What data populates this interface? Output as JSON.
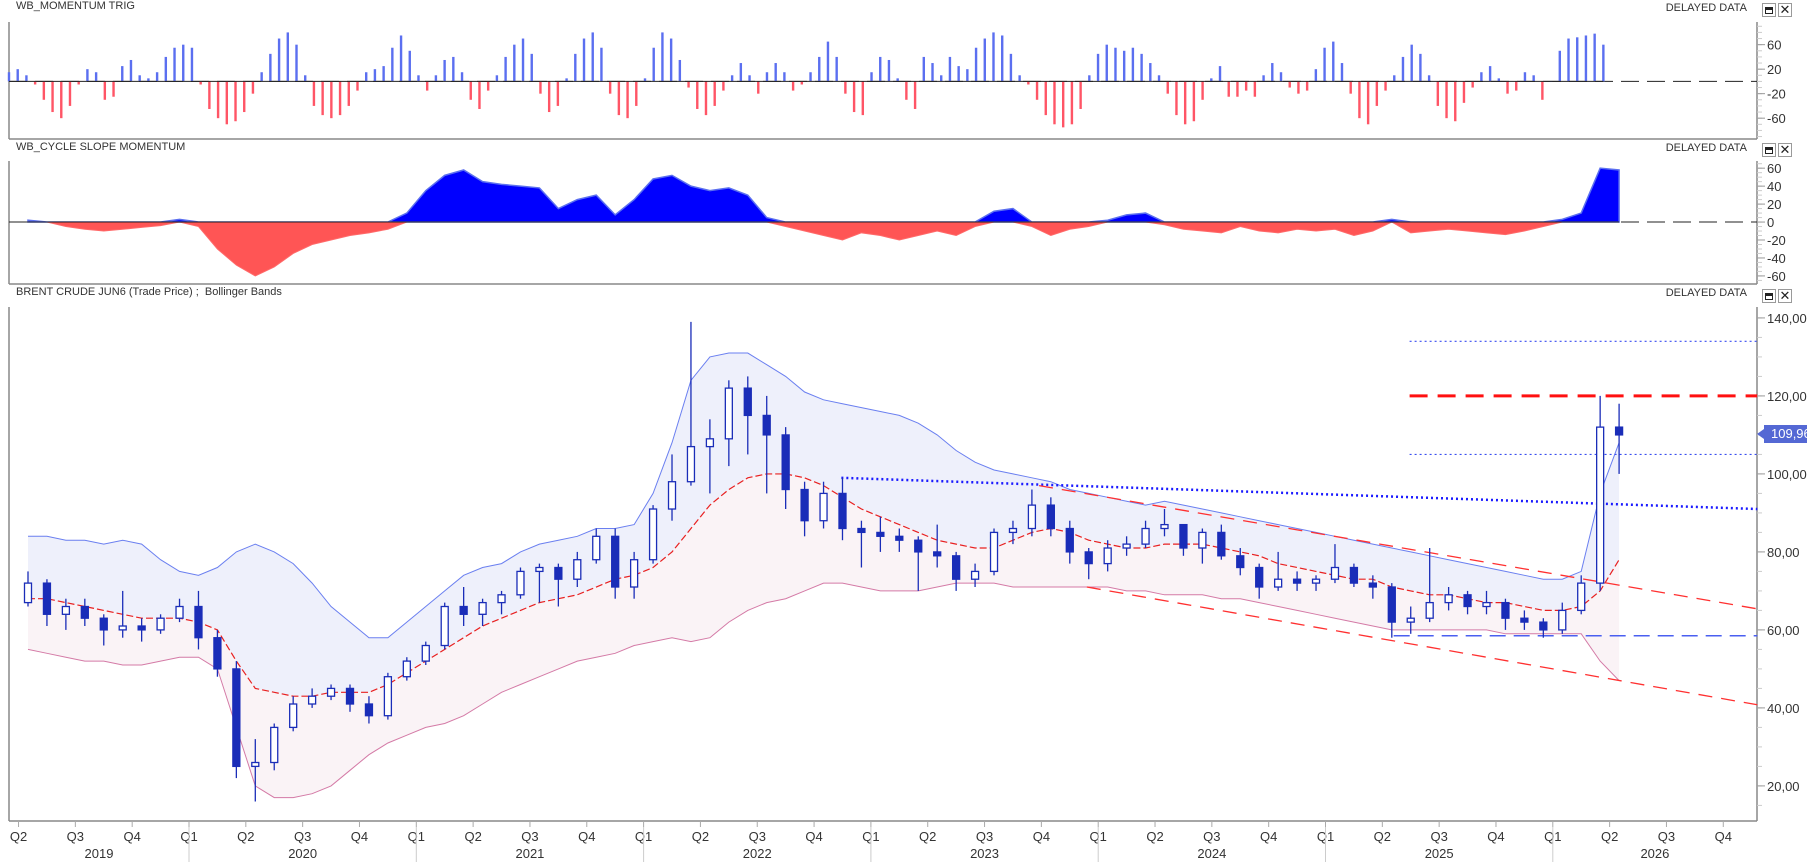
{
  "panels": [
    {
      "title": "WB_MOMENTUM TRIG",
      "status": "DELAYED DATA"
    },
    {
      "title": "WB_CYCLE SLOPE MOMENTUM",
      "status": "DELAYED DATA"
    },
    {
      "title": "BRENT CRUDE JUN6 (Trade Price) ;  Bollinger Bands",
      "status": "DELAYED DATA"
    }
  ],
  "icons": {
    "maximize": "maximize-icon",
    "close": "close-icon"
  },
  "colors": {
    "bull": "#5b6ff0",
    "bear": "#ff5566",
    "area_pos": "#0000ff",
    "area_neg": "#ff5555",
    "candle": "#1a2db8",
    "band_mid": "#e82020",
    "band_upper": "#6a7ff0",
    "band_lower": "#d47aa6",
    "price_tag": "#5468d4"
  },
  "x_axis": {
    "quarters": [
      {
        "year": 2019,
        "q": 2,
        "label": "Q2"
      },
      {
        "year": 2019,
        "q": 3,
        "label": "Q3"
      },
      {
        "year": 2019,
        "q": 4,
        "label": "Q4"
      },
      {
        "year": 2020,
        "q": 1,
        "label": "Q1"
      },
      {
        "year": 2020,
        "q": 2,
        "label": "Q2"
      },
      {
        "year": 2020,
        "q": 3,
        "label": "Q3"
      },
      {
        "year": 2020,
        "q": 4,
        "label": "Q4"
      },
      {
        "year": 2021,
        "q": 1,
        "label": "Q1"
      },
      {
        "year": 2021,
        "q": 2,
        "label": "Q2"
      },
      {
        "year": 2021,
        "q": 3,
        "label": "Q3"
      },
      {
        "year": 2021,
        "q": 4,
        "label": "Q4"
      },
      {
        "year": 2022,
        "q": 1,
        "label": "Q1"
      },
      {
        "year": 2022,
        "q": 2,
        "label": "Q2"
      },
      {
        "year": 2022,
        "q": 3,
        "label": "Q3"
      },
      {
        "year": 2022,
        "q": 4,
        "label": "Q4"
      },
      {
        "year": 2023,
        "q": 1,
        "label": "Q1"
      },
      {
        "year": 2023,
        "q": 2,
        "label": "Q2"
      },
      {
        "year": 2023,
        "q": 3,
        "label": "Q3"
      },
      {
        "year": 2023,
        "q": 4,
        "label": "Q4"
      },
      {
        "year": 2024,
        "q": 1,
        "label": "Q1"
      },
      {
        "year": 2024,
        "q": 2,
        "label": "Q2"
      },
      {
        "year": 2024,
        "q": 3,
        "label": "Q3"
      },
      {
        "year": 2024,
        "q": 4,
        "label": "Q4"
      },
      {
        "year": 2025,
        "q": 1,
        "label": "Q1"
      },
      {
        "year": 2025,
        "q": 2,
        "label": "Q2"
      },
      {
        "year": 2025,
        "q": 3,
        "label": "Q3"
      },
      {
        "year": 2025,
        "q": 4,
        "label": "Q4"
      },
      {
        "year": 2026,
        "q": 1,
        "label": "Q1"
      },
      {
        "year": 2026,
        "q": 2,
        "label": "Q2"
      },
      {
        "year": 2026,
        "q": 3,
        "label": "Q3"
      },
      {
        "year": 2026,
        "q": 4,
        "label": "Q4"
      }
    ],
    "years": [
      "2019",
      "2020",
      "2021",
      "2022",
      "2023",
      "2024",
      "2025",
      "2026"
    ]
  },
  "chart_data": [
    {
      "type": "bar",
      "title": "WB_MOMENTUM TRIG",
      "start": "2019-03-18",
      "step_days": 14,
      "ylim": [
        -94,
        97
      ],
      "yticks": [
        60,
        20,
        -20,
        -60
      ],
      "values": [
        15,
        20,
        10,
        -5,
        -30,
        -50,
        -60,
        -40,
        -5,
        20,
        15,
        -30,
        -25,
        25,
        35,
        10,
        5,
        15,
        40,
        55,
        60,
        55,
        -5,
        -45,
        -60,
        -70,
        -65,
        -50,
        -20,
        15,
        45,
        70,
        80,
        60,
        10,
        -40,
        -55,
        -60,
        -55,
        -40,
        -15,
        15,
        20,
        25,
        55,
        75,
        50,
        10,
        -15,
        10,
        35,
        40,
        15,
        -30,
        -45,
        -15,
        10,
        40,
        60,
        70,
        45,
        -20,
        -50,
        -40,
        5,
        45,
        70,
        80,
        55,
        -20,
        -55,
        -60,
        -40,
        5,
        55,
        80,
        70,
        35,
        -10,
        -45,
        -55,
        -40,
        -15,
        10,
        30,
        10,
        -20,
        15,
        30,
        15,
        -15,
        -5,
        15,
        40,
        65,
        40,
        -20,
        -50,
        -55,
        15,
        40,
        35,
        5,
        -30,
        -45,
        40,
        30,
        10,
        40,
        25,
        20,
        55,
        70,
        80,
        75,
        45,
        10,
        -5,
        -30,
        -55,
        -70,
        -75,
        -70,
        -45,
        10,
        45,
        60,
        55,
        50,
        55,
        45,
        30,
        10,
        -20,
        -55,
        -70,
        -65,
        -30,
        5,
        25,
        -25,
        -25,
        -15,
        -25,
        10,
        30,
        15,
        -10,
        -20,
        -15,
        20,
        55,
        65,
        30,
        -20,
        -60,
        -70,
        -40,
        -15,
        10,
        40,
        60,
        45,
        10,
        -40,
        -60,
        -65,
        -35,
        -10,
        15,
        25,
        5,
        -20,
        -15,
        15,
        10,
        -30,
        0,
        50,
        70,
        72,
        75,
        78,
        60
      ]
    },
    {
      "type": "area",
      "title": "WB_CYCLE SLOPE MOMENTUM",
      "start_month": "2019-04",
      "ylim": [
        -69,
        68
      ],
      "yticks": [
        60,
        40,
        20,
        0,
        -20,
        -40,
        -60
      ],
      "values": [
        2,
        0,
        -5,
        -8,
        -10,
        -8,
        -6,
        -4,
        3,
        -5,
        -30,
        -48,
        -60,
        -50,
        -35,
        -25,
        -20,
        -15,
        -12,
        -8,
        10,
        35,
        52,
        58,
        45,
        42,
        40,
        38,
        15,
        25,
        30,
        8,
        25,
        48,
        52,
        40,
        35,
        38,
        30,
        5,
        -5,
        -10,
        -15,
        -20,
        -12,
        -15,
        -20,
        -15,
        -10,
        -15,
        -5,
        12,
        15,
        -5,
        -15,
        -8,
        -5,
        2,
        8,
        10,
        -3,
        -8,
        -10,
        -12,
        -5,
        -10,
        -12,
        -8,
        -10,
        -8,
        -15,
        -10,
        3,
        -12,
        -10,
        -8,
        -10,
        -12,
        -14,
        -10,
        -5,
        3,
        10,
        60,
        58
      ]
    },
    {
      "type": "candlestick",
      "title": "BRENT CRUDE JUN6 (Trade Price) ;  Bollinger Bands",
      "start_month": "2019-04",
      "ylim": [
        11,
        142.8
      ],
      "yticks": [
        {
          "v": 140,
          "label": "140,00"
        },
        {
          "v": 120,
          "label": "120,00"
        },
        {
          "v": 100,
          "label": "100,00"
        },
        {
          "v": 80,
          "label": "80,00"
        },
        {
          "v": 60,
          "label": "60,00"
        },
        {
          "v": 40,
          "label": "40,00"
        },
        {
          "v": 20,
          "label": "20,00"
        }
      ],
      "last_price": {
        "value": 109.96,
        "label": "109,96"
      },
      "open": [
        67,
        72,
        64,
        66,
        63,
        60,
        61,
        60,
        63,
        66,
        58,
        50,
        25,
        26,
        35,
        41,
        43,
        45,
        41,
        38,
        48,
        52,
        56,
        66,
        64,
        67,
        69,
        75,
        76,
        73,
        78,
        84,
        71,
        78,
        91,
        98,
        107,
        109,
        122,
        115,
        110,
        96,
        88,
        95,
        86,
        85,
        84,
        83,
        80,
        79,
        73,
        75,
        85,
        86,
        92,
        86,
        80,
        77,
        81,
        82,
        86,
        87,
        81,
        85,
        79,
        76,
        71,
        73,
        72,
        73,
        76,
        72,
        71,
        62,
        63,
        67,
        69,
        66,
        67,
        63,
        62,
        60,
        65,
        72,
        112
      ],
      "high": [
        75,
        73,
        68,
        68,
        64,
        70,
        63,
        64,
        68,
        70,
        60,
        52,
        32,
        36,
        43,
        45,
        46,
        46,
        43,
        49,
        53,
        57,
        67,
        71,
        68,
        70,
        76,
        77,
        77,
        80,
        86,
        86,
        80,
        92,
        105,
        139,
        114,
        124,
        125,
        120,
        112,
        98,
        98,
        99,
        88,
        89,
        86,
        84,
        87,
        80,
        77,
        86,
        88,
        96,
        94,
        88,
        81,
        83,
        84,
        88,
        91,
        87,
        86,
        87,
        81,
        77,
        80,
        75,
        74,
        82,
        77,
        74,
        72,
        66,
        81,
        71,
        70,
        70,
        68,
        65,
        63,
        67,
        74,
        120,
        118
      ],
      "low": [
        66,
        61,
        60,
        61,
        56,
        58,
        57,
        59,
        62,
        55,
        48,
        22,
        16,
        24,
        34,
        40,
        42,
        39,
        36,
        37,
        47,
        51,
        55,
        61,
        61,
        64,
        68,
        67,
        66,
        71,
        77,
        68,
        68,
        77,
        88,
        97,
        95,
        102,
        105,
        95,
        91,
        84,
        86,
        83,
        76,
        80,
        80,
        70,
        76,
        70,
        71,
        74,
        82,
        84,
        84,
        77,
        73,
        75,
        79,
        81,
        84,
        79,
        77,
        78,
        74,
        68,
        70,
        70,
        70,
        72,
        71,
        68,
        58,
        59,
        62,
        65,
        64,
        64,
        60,
        60,
        58,
        59,
        64,
        70,
        100
      ],
      "close": [
        72,
        64,
        66,
        63,
        60,
        61,
        60,
        63,
        66,
        58,
        50,
        25,
        26,
        35,
        41,
        43,
        45,
        41,
        38,
        48,
        52,
        56,
        66,
        64,
        67,
        69,
        75,
        76,
        73,
        78,
        84,
        71,
        78,
        91,
        98,
        107,
        109,
        122,
        115,
        110,
        96,
        88,
        95,
        86,
        85,
        84,
        83,
        80,
        79,
        73,
        75,
        85,
        86,
        92,
        86,
        80,
        77,
        81,
        82,
        86,
        87,
        81,
        85,
        79,
        76,
        71,
        73,
        72,
        73,
        76,
        72,
        71,
        62,
        63,
        67,
        69,
        66,
        67,
        63,
        62,
        60,
        65,
        72,
        112,
        110
      ],
      "bollinger": {
        "upper": [
          84,
          84,
          83,
          83,
          82,
          83,
          82,
          78,
          75,
          74,
          76,
          80,
          82,
          80,
          77,
          72,
          66,
          62,
          58,
          58,
          62,
          66,
          70,
          74,
          76,
          77,
          80,
          82,
          83,
          84,
          86,
          86,
          87,
          95,
          108,
          124,
          130,
          131,
          131,
          128,
          125,
          121,
          119,
          118,
          117,
          116,
          115,
          113,
          110,
          106,
          103,
          101,
          100,
          99,
          98,
          96,
          95,
          94,
          93,
          92,
          93,
          92,
          91,
          90,
          89,
          88,
          87,
          86,
          85,
          84,
          83,
          82,
          81,
          80,
          79,
          78,
          77,
          76,
          75,
          74,
          73,
          73,
          75,
          95,
          108
        ],
        "middle": [
          68,
          68,
          67,
          66,
          65,
          64,
          63,
          63,
          63,
          62,
          60,
          52,
          45,
          44,
          43,
          43,
          44,
          44,
          44,
          46,
          49,
          52,
          55,
          58,
          61,
          63,
          65,
          67,
          68,
          69,
          71,
          73,
          74,
          76,
          80,
          86,
          92,
          96,
          99,
          100,
          100,
          99,
          97,
          94,
          91,
          89,
          87,
          85,
          83,
          82,
          81,
          81,
          83,
          85,
          86,
          85,
          83,
          82,
          81,
          81,
          82,
          82,
          82,
          81,
          80,
          79,
          77,
          76,
          75,
          74,
          73,
          73,
          71,
          70,
          69,
          69,
          68,
          67,
          67,
          66,
          65,
          65,
          66,
          70,
          78
        ],
        "lower": [
          55,
          54,
          53,
          52,
          52,
          51,
          51,
          52,
          53,
          53,
          50,
          35,
          20,
          17,
          17,
          18,
          20,
          24,
          28,
          31,
          33,
          35,
          36,
          38,
          41,
          44,
          46,
          48,
          50,
          52,
          53,
          54,
          56,
          57,
          58,
          57,
          58,
          62,
          65,
          67,
          68,
          70,
          72,
          72,
          71,
          70,
          70,
          70,
          71,
          72,
          72,
          72,
          71,
          71,
          71,
          71,
          71,
          71,
          70,
          70,
          69,
          69,
          69,
          68,
          68,
          67,
          66,
          65,
          64,
          63,
          62,
          61,
          60,
          60,
          60,
          60,
          60,
          60,
          59,
          59,
          59,
          59,
          59,
          52,
          47
        ]
      },
      "lines": [
        {
          "name": "resistance-134",
          "style": "dotted-blue-thin",
          "from": [
            2025.37,
            134
          ],
          "to": [
            2026.9,
            134
          ]
        },
        {
          "name": "resistance-120",
          "style": "dashed-red-thick",
          "from": [
            2025.37,
            120
          ],
          "to": [
            2026.9,
            120
          ]
        },
        {
          "name": "level-105",
          "style": "dotted-blue-thin",
          "from": [
            2025.37,
            105
          ],
          "to": [
            2026.9,
            105
          ]
        },
        {
          "name": "support-58-5",
          "style": "dashed-blue",
          "from": [
            2025.3,
            58.5
          ],
          "to": [
            2026.9,
            58.5
          ]
        },
        {
          "name": "descending-trendline",
          "style": "dotted-blue",
          "from": [
            2022.87,
            99
          ],
          "to": [
            2026.9,
            91
          ]
        },
        {
          "name": "channel-upper",
          "style": "dashed-red",
          "from": [
            2023.74,
            97
          ],
          "to": [
            2026.9,
            65.4
          ]
        },
        {
          "name": "channel-lower",
          "style": "dashed-red",
          "from": [
            2023.95,
            71
          ],
          "to": [
            2026.9,
            40.8
          ]
        }
      ]
    }
  ]
}
